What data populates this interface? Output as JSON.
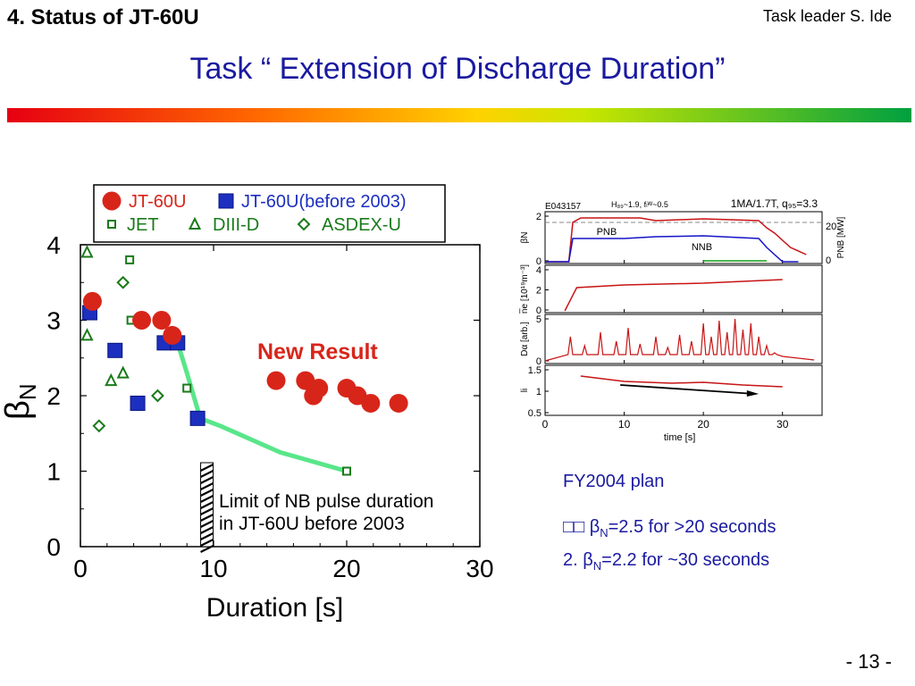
{
  "header": {
    "section": "4.  Status of JT-60U",
    "task_leader": "Task leader  S. Ide",
    "title": "Task “ Extension of Discharge Duration”"
  },
  "footer": {
    "page": "- 13 -"
  },
  "plan": {
    "heading": "FY2004 plan",
    "line1_prefix": "□□ ",
    "line1_rest": "=2.5 for >20 seconds",
    "line2_prefix": "2. ",
    "line2_rest": "=2.2 for ~30 seconds",
    "beta_symbol": "β",
    "beta_sub": "N"
  },
  "colors": {
    "jt60u": "#d8251a",
    "before2003": "#1c2fbf",
    "others": "#1a7a1a",
    "trend": "#59e68a",
    "title": "#1a1aa0"
  },
  "chart_data": [
    {
      "type": "scatter",
      "xlabel": "Duration [s]",
      "ylabel_symbol": "β",
      "ylabel_sub": "N",
      "xlim": [
        0,
        30
      ],
      "ylim": [
        0,
        4
      ],
      "xticks": [
        "0",
        "10",
        "20",
        "30"
      ],
      "yticks": [
        "0",
        "1",
        "2",
        "3",
        "4"
      ],
      "legend": [
        "JT-60U",
        "JT-60U(before 2003)",
        "JET",
        "DIII-D",
        "ASDEX-U"
      ],
      "series": [
        {
          "name": "JT-60U",
          "marker": "circle",
          "x": [
            0.9,
            4.6,
            6.1,
            6.9,
            14.7,
            16.9,
            17.5,
            17.9,
            20.0,
            20.8,
            21.8,
            23.9
          ],
          "y": [
            3.25,
            3.0,
            3.0,
            2.8,
            2.2,
            2.2,
            2.0,
            2.1,
            2.1,
            2.0,
            1.9,
            1.9
          ]
        },
        {
          "name": "JT-60U(before 2003)",
          "marker": "square",
          "x": [
            0.7,
            2.6,
            4.3,
            6.3,
            7.3,
            8.8
          ],
          "y": [
            3.1,
            2.6,
            1.9,
            2.7,
            2.7,
            1.7
          ]
        },
        {
          "name": "JET",
          "marker": "small-square",
          "x": [
            3.7,
            3.8,
            8.0,
            20.0
          ],
          "y": [
            3.8,
            3.0,
            2.1,
            1.0
          ]
        },
        {
          "name": "DIII-D",
          "marker": "triangle",
          "x": [
            0.5,
            0.5,
            2.3,
            3.2
          ],
          "y": [
            3.9,
            2.8,
            2.2,
            2.3
          ]
        },
        {
          "name": "ASDEX-U",
          "marker": "diamond",
          "x": [
            1.4,
            3.2,
            5.8
          ],
          "y": [
            1.6,
            3.5,
            2.0
          ]
        }
      ],
      "trend_line": {
        "x": [
          5.9,
          7.3,
          8.0,
          9.0,
          10.5,
          15.0,
          20.0
        ],
        "y": [
          2.7,
          2.7,
          2.3,
          1.7,
          1.6,
          1.25,
          1.0
        ]
      },
      "limit_line_x": 9.5,
      "annotations": [
        "New Result",
        "Limit of NB pulse duration",
        "in JT-60U before 2003"
      ]
    },
    {
      "type": "line",
      "shot": "E043157",
      "params": "H₈₉~1.9, fₗᵂ~0.5",
      "conditions": "1MA/1.7T, q₉₅=3.3",
      "xlabel": "time [s]",
      "xlim": [
        0,
        35
      ],
      "xticks": [
        "0",
        "10",
        "20",
        "30"
      ],
      "panels": [
        {
          "ylabel": "βN",
          "yticks": [
            "0",
            "2"
          ],
          "right_label": "PNB [MW]",
          "right_ticks": [
            "0",
            "20"
          ],
          "series_labels": [
            "PNB",
            "NNB"
          ]
        },
        {
          "ylabel": "n̅e [10¹⁹m⁻³]",
          "yticks": [
            "0",
            "2",
            "4"
          ]
        },
        {
          "ylabel": "Dα [arb.]",
          "yticks": [
            "0",
            "5"
          ]
        },
        {
          "ylabel": "li",
          "yticks": [
            "0.5",
            "1",
            "1.5"
          ]
        }
      ]
    }
  ]
}
